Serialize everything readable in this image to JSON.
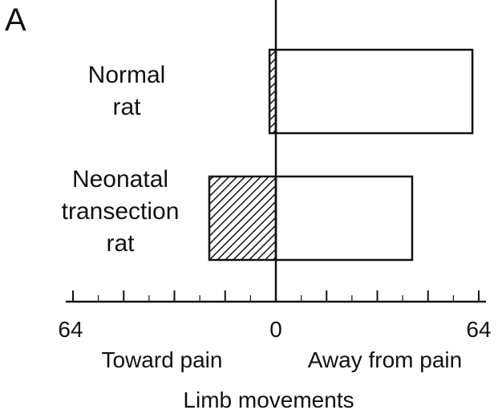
{
  "panel_label": "A",
  "chart_data": {
    "type": "bar",
    "orientation": "horizontal",
    "layout": "diverging",
    "categories": [
      [
        "Normal",
        "rat"
      ],
      [
        "Neonatal",
        "transection",
        "rat"
      ]
    ],
    "series": [
      {
        "name": "Toward pain",
        "values": [
          2,
          21
        ],
        "pattern": "hatched"
      },
      {
        "name": "Away from pain",
        "values": [
          62,
          43
        ],
        "pattern": "open"
      }
    ],
    "xlim": [
      -64,
      64
    ],
    "tick_labels": [
      "64",
      "0",
      "64"
    ],
    "direction_labels": {
      "left": "Toward pain",
      "right": "Away from pain"
    },
    "xlabel": "Limb movements",
    "grid": false,
    "legend": "none"
  }
}
